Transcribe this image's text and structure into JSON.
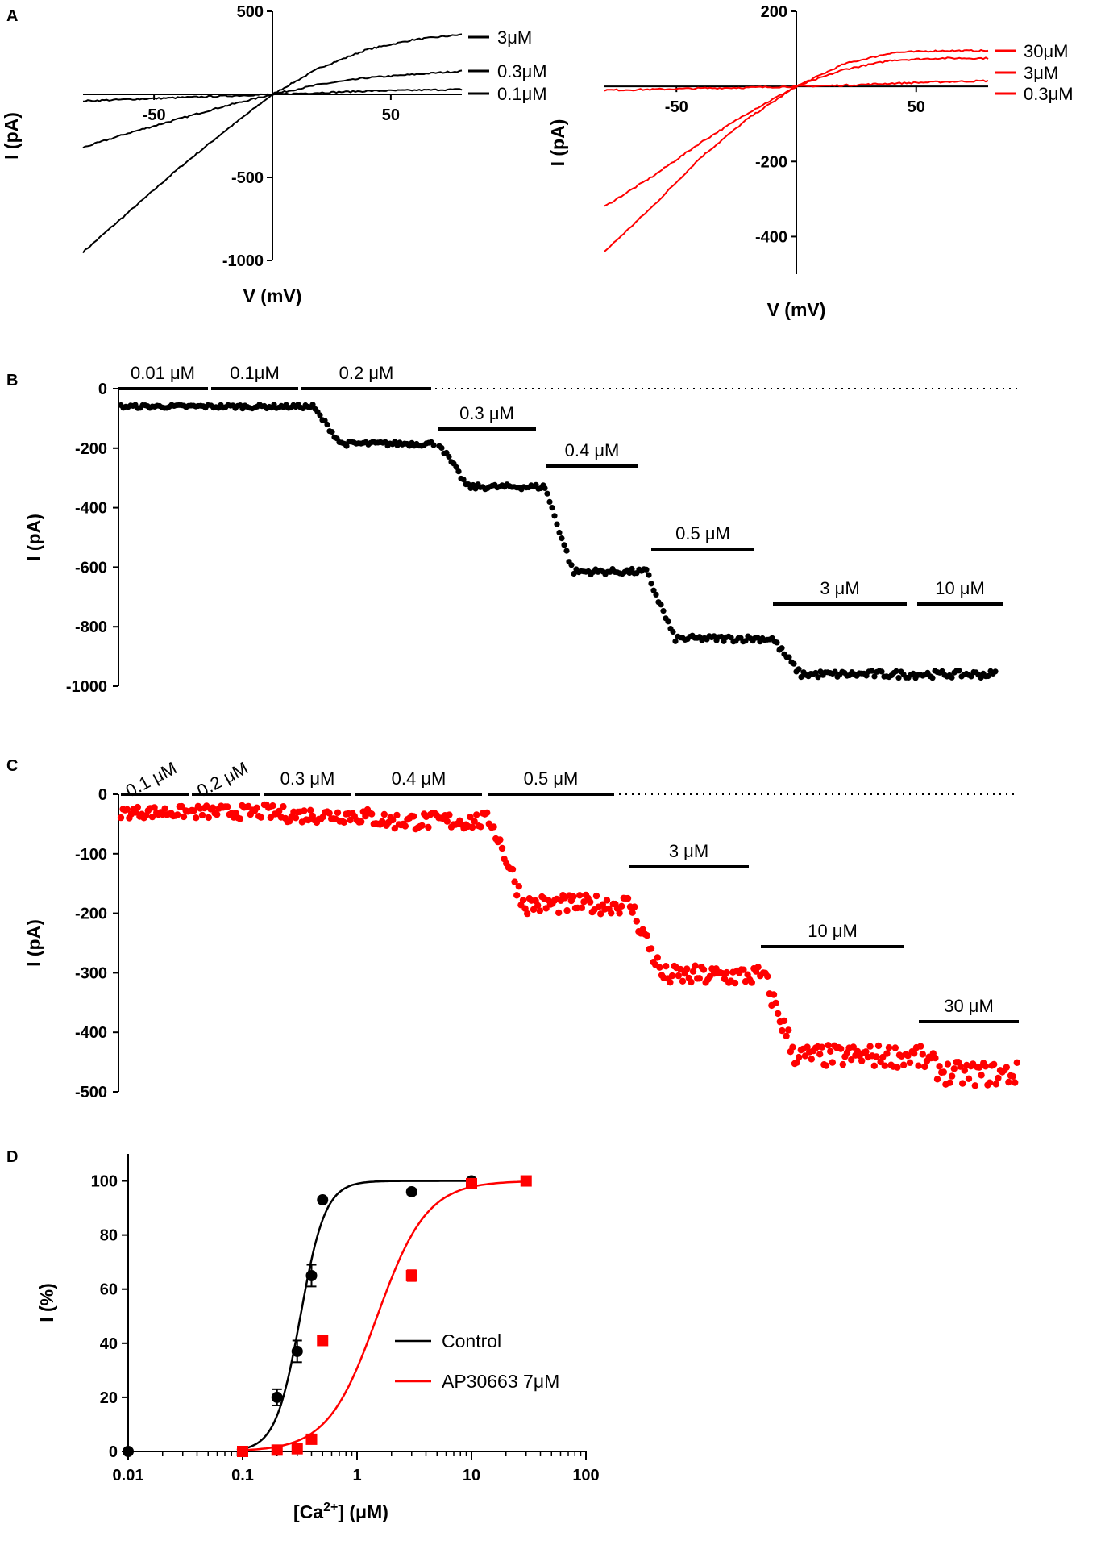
{
  "panels": [
    "A",
    "B",
    "C",
    "D"
  ],
  "chart_data": [
    {
      "id": "A-left",
      "type": "line",
      "xlabel": "V (mV)",
      "ylabel": "I (pA)",
      "xlim": [
        -80,
        80
      ],
      "ylim": [
        -1000,
        500
      ],
      "xticks": [
        -50,
        50
      ],
      "yticks": [
        500,
        -500,
        -1000
      ],
      "color": "#000000",
      "series": [
        {
          "name": "3μM",
          "x": [
            -80,
            -60,
            -40,
            -20,
            0,
            20,
            40,
            60,
            80
          ],
          "y": [
            -950,
            -700,
            -450,
            -220,
            0,
            160,
            270,
            330,
            360
          ]
        },
        {
          "name": "0.3μM",
          "x": [
            -80,
            -60,
            -40,
            -20,
            0,
            20,
            40,
            60,
            80
          ],
          "y": [
            -320,
            -230,
            -150,
            -70,
            0,
            60,
            100,
            120,
            140
          ]
        },
        {
          "name": "0.1μM",
          "x": [
            -80,
            -60,
            -40,
            -20,
            0,
            20,
            40,
            60,
            80
          ],
          "y": [
            -40,
            -30,
            -20,
            -10,
            0,
            10,
            20,
            25,
            30
          ]
        }
      ]
    },
    {
      "id": "A-right",
      "type": "line",
      "xlabel": "V (mV)",
      "ylabel": "I (pA)",
      "xlim": [
        -80,
        80
      ],
      "ylim": [
        -500,
        200
      ],
      "xticks": [
        -50,
        50
      ],
      "yticks": [
        200,
        -200,
        -400
      ],
      "color": "#ff0000",
      "series": [
        {
          "name": "30μM",
          "x": [
            -80,
            -60,
            -40,
            -20,
            0,
            20,
            40,
            60,
            80
          ],
          "y": [
            -440,
            -320,
            -190,
            -85,
            0,
            60,
            90,
            95,
            95
          ]
        },
        {
          "name": "3μM",
          "x": [
            -80,
            -60,
            -40,
            -20,
            0,
            20,
            40,
            60,
            80
          ],
          "y": [
            -320,
            -240,
            -150,
            -70,
            0,
            45,
            70,
            75,
            75
          ]
        },
        {
          "name": "0.3μM",
          "x": [
            -80,
            -60,
            -40,
            -20,
            0,
            20,
            40,
            60,
            80
          ],
          "y": [
            -10,
            -8,
            -5,
            -3,
            0,
            3,
            8,
            12,
            15
          ]
        }
      ]
    },
    {
      "id": "B",
      "type": "scatter",
      "ylabel": "I (pA)",
      "ylim": [
        -1000,
        0
      ],
      "yticks": [
        0,
        -200,
        -400,
        -600,
        -800,
        -1000
      ],
      "color": "#000000",
      "applications": [
        "0.01 μM",
        "0.1μM",
        "0.2 μM",
        "0.3 μM",
        "0.4 μM",
        "0.5 μM",
        "3 μM",
        "10 μM"
      ],
      "levels": [
        -60,
        -60,
        -185,
        -330,
        -615,
        -840,
        -960,
        -960
      ]
    },
    {
      "id": "C",
      "type": "scatter",
      "ylabel": "I (pA)",
      "ylim": [
        -500,
        0
      ],
      "yticks": [
        0,
        -100,
        -200,
        -300,
        -400,
        -500
      ],
      "color": "#ff0000",
      "applications": [
        "0.1 μM",
        "0.2 μM",
        "0.3 μM",
        "0.4 μM",
        "0.5 μM",
        "3 μM",
        "10 μM",
        "30 μM"
      ],
      "levels": [
        -30,
        -30,
        -35,
        -45,
        -185,
        -305,
        -440,
        -470
      ]
    },
    {
      "id": "D",
      "type": "scatter",
      "xlabel": "[Ca2+] (μM)",
      "ylabel": "I (%)",
      "xscale": "log",
      "xlim": [
        0.01,
        100
      ],
      "ylim": [
        0,
        110
      ],
      "xticks": [
        "0.01",
        "0.1",
        "1",
        "10",
        "100"
      ],
      "yticks": [
        0,
        20,
        40,
        60,
        80,
        100
      ],
      "legend": "center-right",
      "series": [
        {
          "name": "Control",
          "color": "#000000",
          "marker": "circle",
          "x": [
            0.01,
            0.2,
            0.3,
            0.4,
            0.5,
            3,
            10
          ],
          "y": [
            0,
            20,
            37,
            65,
            93,
            96,
            100
          ],
          "error": [
            0,
            3,
            4,
            4,
            1,
            1,
            1
          ],
          "fit": {
            "ec50": 0.32,
            "hill": 4
          }
        },
        {
          "name": "AP30663 7μM",
          "color": "#ff0000",
          "marker": "square",
          "x": [
            0.1,
            0.2,
            0.3,
            0.4,
            0.5,
            3,
            10,
            30
          ],
          "y": [
            0,
            0.5,
            1,
            4.5,
            41,
            65,
            99,
            100
          ],
          "error": [
            0,
            0,
            0,
            0,
            0,
            2,
            0,
            0
          ],
          "fit": {
            "ec50": 1.5,
            "hill": 2
          }
        }
      ]
    }
  ]
}
